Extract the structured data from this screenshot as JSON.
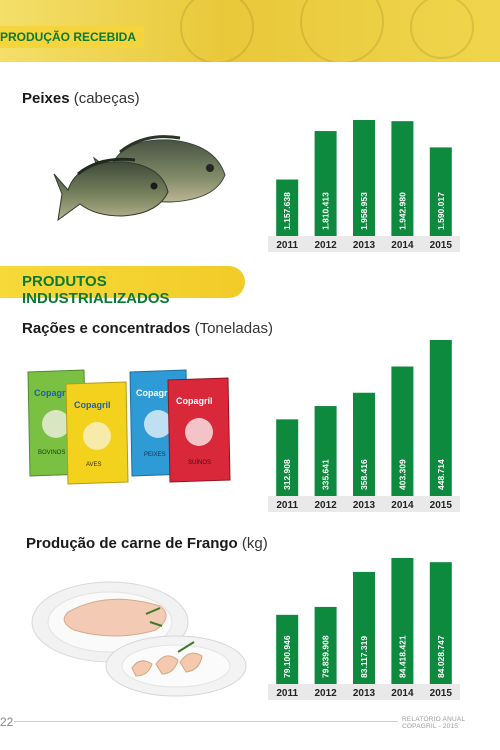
{
  "header": {
    "section_label": "PRODUÇÃO RECEBIDA"
  },
  "fish": {
    "title": "Peixes",
    "unit": "(cabeças)"
  },
  "industrial_header": "PRODUTOS INDUSTRIALIZADOS",
  "feed": {
    "title": "Rações e concentrados",
    "unit": "(Toneladas)",
    "package_brand": "Copagril",
    "package_labels": [
      "BOVINOS",
      "AVES",
      "PEIXES",
      "SUÍNOS"
    ]
  },
  "chicken": {
    "title": "Produção de carne de Frango",
    "unit": "(kg)"
  },
  "footer": {
    "page_number": "22",
    "report": "RELATÓRIO ANUAL COPAGRIL - 2015"
  },
  "colors": {
    "bar_green": "#0e8a3e",
    "accent_yellow": "#f5d53b",
    "title_green": "#0a7a32"
  },
  "chart_data": [
    {
      "type": "bar",
      "title": "Peixes (cabeças)",
      "categories": [
        "2011",
        "2012",
        "2013",
        "2014",
        "2015"
      ],
      "values": [
        1157638,
        1810413,
        1958953,
        1942980,
        1590017
      ],
      "labels": [
        "1.157.638",
        "1.810.413",
        "1.958.953",
        "1.942.980",
        "1.590.017"
      ],
      "xlabel": "",
      "ylabel": ""
    },
    {
      "type": "bar",
      "title": "Rações e concentrados (Toneladas)",
      "categories": [
        "2011",
        "2012",
        "2013",
        "2014",
        "2015"
      ],
      "values": [
        312908,
        335641,
        358416,
        403309,
        448714
      ],
      "labels": [
        "312.908",
        "335.641",
        "358.416",
        "403.309",
        "448.714"
      ],
      "xlabel": "",
      "ylabel": ""
    },
    {
      "type": "bar",
      "title": "Produção de carne de Frango (kg)",
      "categories": [
        "2011",
        "2012",
        "2013",
        "2014",
        "2015"
      ],
      "values": [
        79100946,
        79839908,
        83117319,
        84418421,
        84028747
      ],
      "labels": [
        "79.100.946",
        "79.839.908",
        "83.117.319",
        "84.418.421",
        "84.028.747"
      ],
      "xlabel": "",
      "ylabel": ""
    }
  ]
}
